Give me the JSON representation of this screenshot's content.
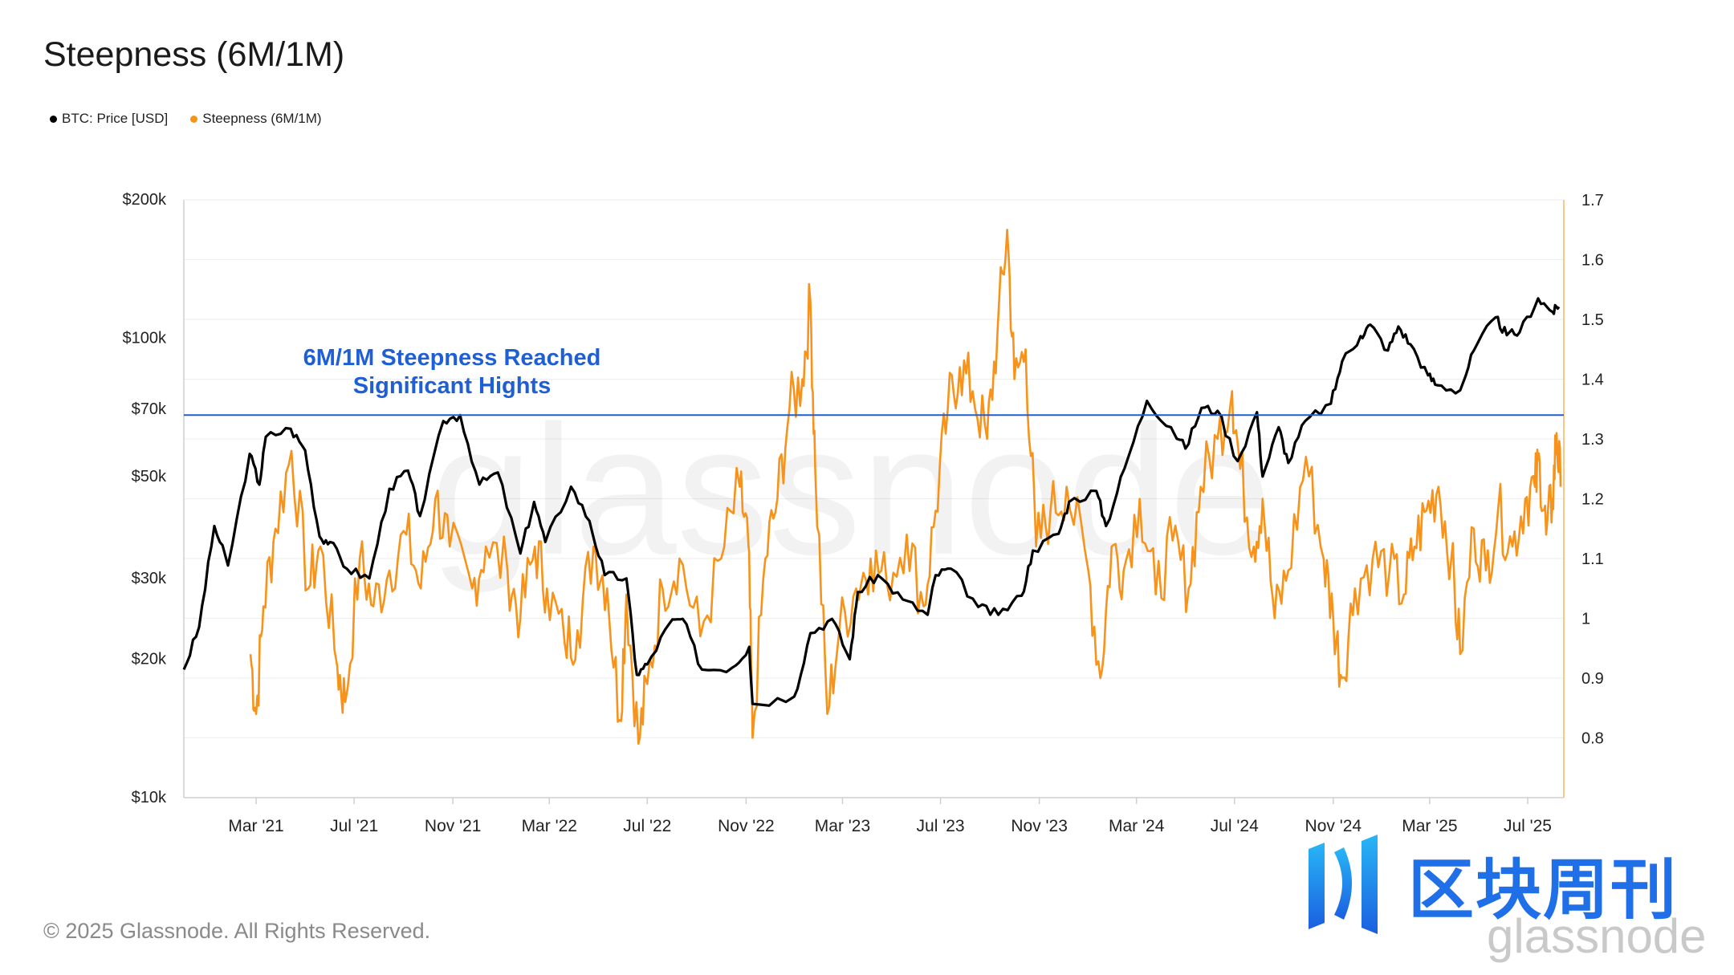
{
  "page": {
    "title": "Steepness (6M/1M)",
    "footer": "© 2025 Glassnode. All Rights Reserved.",
    "watermark": "glassnode",
    "brand_cn": "区块周刊",
    "brand_sub": "glassnode"
  },
  "chart_data": {
    "type": "line",
    "title": "Steepness (6M/1M)",
    "legend_position": "top-left",
    "grid": true,
    "x_axis": {
      "type": "date",
      "range": [
        "2020-12-01",
        "2025-08-15"
      ],
      "ticks": [
        {
          "date": "2021-03-01",
          "label": "Mar '21"
        },
        {
          "date": "2021-07-01",
          "label": "Jul '21"
        },
        {
          "date": "2021-11-01",
          "label": "Nov '21"
        },
        {
          "date": "2022-03-01",
          "label": "Mar '22"
        },
        {
          "date": "2022-07-01",
          "label": "Jul '22"
        },
        {
          "date": "2022-11-01",
          "label": "Nov '22"
        },
        {
          "date": "2023-03-01",
          "label": "Mar '23"
        },
        {
          "date": "2023-07-01",
          "label": "Jul '23"
        },
        {
          "date": "2023-11-01",
          "label": "Nov '23"
        },
        {
          "date": "2024-03-01",
          "label": "Mar '24"
        },
        {
          "date": "2024-07-01",
          "label": "Jul '24"
        },
        {
          "date": "2024-11-01",
          "label": "Nov '24"
        },
        {
          "date": "2025-03-01",
          "label": "Mar '25"
        },
        {
          "date": "2025-07-01",
          "label": "Jul '25"
        }
      ]
    },
    "y_left": {
      "scale": "log",
      "range": [
        10000,
        200000
      ],
      "ticks": [
        {
          "value": 10000,
          "label": "$10k"
        },
        {
          "value": 20000,
          "label": "$20k"
        },
        {
          "value": 30000,
          "label": "$30k"
        },
        {
          "value": 50000,
          "label": "$50k"
        },
        {
          "value": 70000,
          "label": "$70k"
        },
        {
          "value": 100000,
          "label": "$100k"
        },
        {
          "value": 200000,
          "label": "$200k"
        }
      ]
    },
    "y_right": {
      "scale": "linear",
      "range": [
        0.7,
        1.7
      ],
      "ticks": [
        {
          "value": 0.8,
          "label": "0.8"
        },
        {
          "value": 0.9,
          "label": "0.9"
        },
        {
          "value": 1.0,
          "label": "1"
        },
        {
          "value": 1.1,
          "label": "1.1"
        },
        {
          "value": 1.2,
          "label": "1.2"
        },
        {
          "value": 1.3,
          "label": "1.3"
        },
        {
          "value": 1.4,
          "label": "1.4"
        },
        {
          "value": 1.5,
          "label": "1.5"
        },
        {
          "value": 1.6,
          "label": "1.6"
        },
        {
          "value": 1.7,
          "label": "1.7"
        }
      ]
    },
    "threshold": {
      "axis": "right",
      "value": 1.34,
      "color": "#1f5fd6"
    },
    "annotation": {
      "lines": [
        "6M/1M Steepness Reached",
        "Significant Hights"
      ],
      "color": "#1f5fd6"
    },
    "series": [
      {
        "name": "BTC: Price [USD]",
        "color": "#000000",
        "axis": "left",
        "points": [
          [
            "2020-12-01",
            19000
          ],
          [
            "2020-12-20",
            23500
          ],
          [
            "2021-01-08",
            39000
          ],
          [
            "2021-01-25",
            32000
          ],
          [
            "2021-02-21",
            56000
          ],
          [
            "2021-03-05",
            48000
          ],
          [
            "2021-03-13",
            61000
          ],
          [
            "2021-04-13",
            63500
          ],
          [
            "2021-05-01",
            57000
          ],
          [
            "2021-05-19",
            37000
          ],
          [
            "2021-06-01",
            36000
          ],
          [
            "2021-06-22",
            31500
          ],
          [
            "2021-07-20",
            30000
          ],
          [
            "2021-08-14",
            47000
          ],
          [
            "2021-09-06",
            51500
          ],
          [
            "2021-09-21",
            41000
          ],
          [
            "2021-10-20",
            66000
          ],
          [
            "2021-11-10",
            68000
          ],
          [
            "2021-12-04",
            48000
          ],
          [
            "2021-12-27",
            51000
          ],
          [
            "2022-01-24",
            34000
          ],
          [
            "2022-02-10",
            44000
          ],
          [
            "2022-02-24",
            36000
          ],
          [
            "2022-03-28",
            47500
          ],
          [
            "2022-04-20",
            40000
          ],
          [
            "2022-05-09",
            30500
          ],
          [
            "2022-06-05",
            30000
          ],
          [
            "2022-06-18",
            18500
          ],
          [
            "2022-07-01",
            19500
          ],
          [
            "2022-07-29",
            24000
          ],
          [
            "2022-08-14",
            24500
          ],
          [
            "2022-09-07",
            19000
          ],
          [
            "2022-10-15",
            19200
          ],
          [
            "2022-11-05",
            21300
          ],
          [
            "2022-11-09",
            16000
          ],
          [
            "2022-12-31",
            16600
          ],
          [
            "2023-01-20",
            22800
          ],
          [
            "2023-02-16",
            24500
          ],
          [
            "2023-03-10",
            20000
          ],
          [
            "2023-03-20",
            28000
          ],
          [
            "2023-04-14",
            30500
          ],
          [
            "2023-05-15",
            27000
          ],
          [
            "2023-06-15",
            25000
          ],
          [
            "2023-06-25",
            30500
          ],
          [
            "2023-07-14",
            31500
          ],
          [
            "2023-08-17",
            26000
          ],
          [
            "2023-09-11",
            25000
          ],
          [
            "2023-10-10",
            27500
          ],
          [
            "2023-10-24",
            34500
          ],
          [
            "2023-11-25",
            37500
          ],
          [
            "2023-12-08",
            44000
          ],
          [
            "2024-01-11",
            46500
          ],
          [
            "2024-01-23",
            39000
          ],
          [
            "2024-02-15",
            52000
          ],
          [
            "2024-03-14",
            73000
          ],
          [
            "2024-04-13",
            64000
          ],
          [
            "2024-05-01",
            57500
          ],
          [
            "2024-05-21",
            70500
          ],
          [
            "2024-06-10",
            69500
          ],
          [
            "2024-07-05",
            54000
          ],
          [
            "2024-07-29",
            69000
          ],
          [
            "2024-08-05",
            50000
          ],
          [
            "2024-08-25",
            64000
          ],
          [
            "2024-09-06",
            53500
          ],
          [
            "2024-09-27",
            66000
          ],
          [
            "2024-10-29",
            72000
          ],
          [
            "2024-11-12",
            89000
          ],
          [
            "2024-12-05",
            101000
          ],
          [
            "2024-12-17",
            107000
          ],
          [
            "2025-01-08",
            94000
          ],
          [
            "2025-01-21",
            106000
          ],
          [
            "2025-02-05",
            97000
          ],
          [
            "2025-02-27",
            83000
          ],
          [
            "2025-03-10",
            79000
          ],
          [
            "2025-04-08",
            77000
          ],
          [
            "2025-04-25",
            94000
          ],
          [
            "2025-05-22",
            111000
          ],
          [
            "2025-06-05",
            101500
          ],
          [
            "2025-06-21",
            103000
          ],
          [
            "2025-07-14",
            122000
          ],
          [
            "2025-08-01",
            114000
          ],
          [
            "2025-08-09",
            117000
          ]
        ]
      },
      {
        "name": "Steepness (6M/1M)",
        "color": "#f7931a",
        "axis": "right",
        "points": [
          [
            "2021-02-22",
            0.94
          ],
          [
            "2021-03-01",
            0.84
          ],
          [
            "2021-03-10",
            1.02
          ],
          [
            "2021-03-25",
            1.15
          ],
          [
            "2021-04-14",
            1.28
          ],
          [
            "2021-05-05",
            1.05
          ],
          [
            "2021-05-20",
            1.12
          ],
          [
            "2021-06-10",
            0.92
          ],
          [
            "2021-06-20",
            0.86
          ],
          [
            "2021-07-08",
            1.1
          ],
          [
            "2021-07-25",
            1.02
          ],
          [
            "2021-08-14",
            1.08
          ],
          [
            "2021-09-04",
            1.14
          ],
          [
            "2021-09-22",
            1.05
          ],
          [
            "2021-10-10",
            1.2
          ],
          [
            "2021-10-28",
            1.12
          ],
          [
            "2021-11-25",
            1.05
          ],
          [
            "2021-12-12",
            1.12
          ],
          [
            "2022-01-08",
            1.08
          ],
          [
            "2022-01-24",
            1.0
          ],
          [
            "2022-02-11",
            1.12
          ],
          [
            "2022-02-26",
            1.05
          ],
          [
            "2022-03-20",
            0.96
          ],
          [
            "2022-04-05",
            0.98
          ],
          [
            "2022-04-25",
            1.12
          ],
          [
            "2022-05-12",
            1.05
          ],
          [
            "2022-05-28",
            0.83
          ],
          [
            "2022-06-05",
            1.04
          ],
          [
            "2022-06-20",
            0.79
          ],
          [
            "2022-07-01",
            0.89
          ],
          [
            "2022-07-20",
            1.05
          ],
          [
            "2022-08-10",
            1.1
          ],
          [
            "2022-09-05",
            0.97
          ],
          [
            "2022-10-01",
            1.1
          ],
          [
            "2022-10-24",
            1.22
          ],
          [
            "2022-11-04",
            1.12
          ],
          [
            "2022-11-09",
            0.8
          ],
          [
            "2022-11-25",
            1.1
          ],
          [
            "2022-12-10",
            1.2
          ],
          [
            "2022-12-25",
            1.35
          ],
          [
            "2023-01-10",
            1.4
          ],
          [
            "2023-01-20",
            1.53
          ],
          [
            "2023-01-26",
            1.25
          ],
          [
            "2023-02-10",
            0.84
          ],
          [
            "2023-02-25",
            0.98
          ],
          [
            "2023-03-18",
            1.05
          ],
          [
            "2023-04-05",
            1.1
          ],
          [
            "2023-04-25",
            1.06
          ],
          [
            "2023-05-20",
            1.14
          ],
          [
            "2023-06-10",
            1.02
          ],
          [
            "2023-06-25",
            1.18
          ],
          [
            "2023-07-10",
            1.35
          ],
          [
            "2023-07-25",
            1.42
          ],
          [
            "2023-08-10",
            1.38
          ],
          [
            "2023-08-28",
            1.3
          ],
          [
            "2023-09-10",
            1.48
          ],
          [
            "2023-09-22",
            1.65
          ],
          [
            "2023-10-01",
            1.4
          ],
          [
            "2023-10-15",
            1.45
          ],
          [
            "2023-10-28",
            1.12
          ],
          [
            "2023-11-15",
            1.18
          ],
          [
            "2023-12-05",
            1.22
          ],
          [
            "2024-01-01",
            1.08
          ],
          [
            "2024-01-16",
            0.9
          ],
          [
            "2024-01-30",
            1.12
          ],
          [
            "2024-02-14",
            1.08
          ],
          [
            "2024-03-05",
            1.2
          ],
          [
            "2024-03-25",
            1.04
          ],
          [
            "2024-04-15",
            1.13
          ],
          [
            "2024-05-05",
            1.05
          ],
          [
            "2024-05-20",
            1.22
          ],
          [
            "2024-06-10",
            1.3
          ],
          [
            "2024-06-28",
            1.38
          ],
          [
            "2024-07-08",
            1.25
          ],
          [
            "2024-07-25",
            1.12
          ],
          [
            "2024-08-05",
            1.2
          ],
          [
            "2024-08-20",
            1.0
          ],
          [
            "2024-09-06",
            1.08
          ],
          [
            "2024-09-28",
            1.27
          ],
          [
            "2024-10-20",
            1.1
          ],
          [
            "2024-11-01",
            1.0
          ],
          [
            "2024-11-12",
            0.9
          ],
          [
            "2024-11-28",
            1.05
          ],
          [
            "2024-12-20",
            1.1
          ],
          [
            "2025-01-10",
            1.08
          ],
          [
            "2025-01-28",
            1.04
          ],
          [
            "2025-02-10",
            1.12
          ],
          [
            "2025-02-25",
            1.18
          ],
          [
            "2025-03-12",
            1.22
          ],
          [
            "2025-03-28",
            1.1
          ],
          [
            "2025-04-08",
            0.94
          ],
          [
            "2025-04-25",
            1.15
          ],
          [
            "2025-05-10",
            1.08
          ],
          [
            "2025-05-25",
            1.18
          ],
          [
            "2025-06-12",
            1.12
          ],
          [
            "2025-06-28",
            1.2
          ],
          [
            "2025-07-10",
            1.22
          ],
          [
            "2025-07-16",
            1.26
          ],
          [
            "2025-07-24",
            1.14
          ],
          [
            "2025-08-01",
            1.2
          ],
          [
            "2025-08-06",
            1.31
          ],
          [
            "2025-08-11",
            1.22
          ]
        ]
      }
    ]
  }
}
